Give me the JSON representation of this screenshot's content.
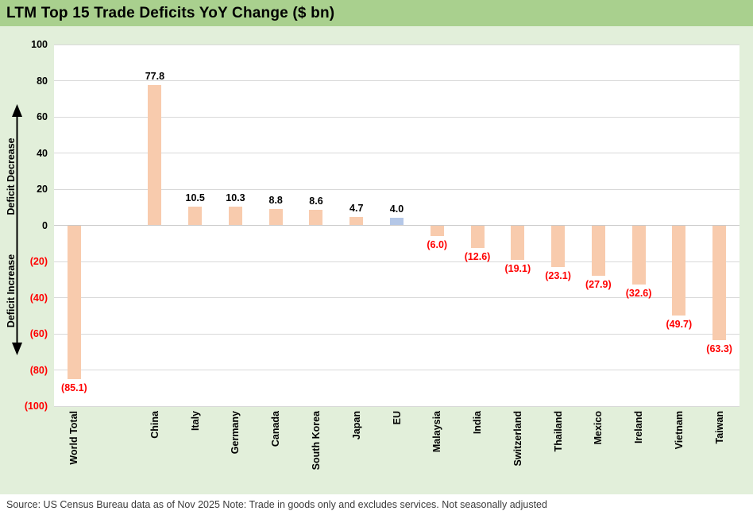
{
  "title": "LTM Top 15 Trade Deficits YoY Change ($ bn)",
  "source_note": "Source: US Census Bureau data as of Nov 2025 Note: Trade in goods only and excludes services. Not seasonally adjusted",
  "axis_annotations": {
    "upper": "Deficit Decrease",
    "lower": "Deficit Increase"
  },
  "colors": {
    "title_bar_bg": "#a9d08e",
    "page_bg": "#e2efda",
    "plot_bg": "#ffffff",
    "bar_default": "#f8cbad",
    "bar_highlight": "#b4c7e7",
    "negative_label": "#ff0000",
    "positive_label": "#000000",
    "gridline": "#d9d9d9",
    "zero_line": "#c9c9c9",
    "footer_bg": "#ffffff",
    "footer_text": "#3b3b3b",
    "arrow": "#000000"
  },
  "chart_data": {
    "type": "bar",
    "title": "LTM Top 15 Trade Deficits YoY Change ($ bn)",
    "categories": [
      "World Total",
      "China",
      "Italy",
      "Germany",
      "Canada",
      "South Korea",
      "Japan",
      "EU",
      "Malaysia",
      "India",
      "Switzerland",
      "Thailand",
      "Mexico",
      "Ireland",
      "Vietnam",
      "Taiwan"
    ],
    "values": [
      -85.1,
      77.8,
      10.5,
      10.3,
      8.8,
      8.6,
      4.7,
      4.0,
      -6.0,
      -12.6,
      -19.1,
      -23.1,
      -27.9,
      -32.6,
      -49.7,
      -63.3
    ],
    "value_labels": [
      "(85.1)",
      "77.8",
      "10.5",
      "10.3",
      "8.8",
      "8.6",
      "4.7",
      "4.0",
      "(6.0)",
      "(12.6)",
      "(19.1)",
      "(23.1)",
      "(27.9)",
      "(32.6)",
      "(49.7)",
      "(63.3)"
    ],
    "highlight_index": 7,
    "highlight_category": "EU",
    "ylim": [
      -100,
      100
    ],
    "ytick_step": 20,
    "ytick_labels": [
      "100",
      "80",
      "60",
      "40",
      "20",
      "0",
      "(20)",
      "(40)",
      "(60)",
      "(80)",
      "(100)"
    ],
    "grid": true,
    "legend": "none",
    "spacer_after_index": 0,
    "xlabel": "",
    "ylabel": ""
  }
}
